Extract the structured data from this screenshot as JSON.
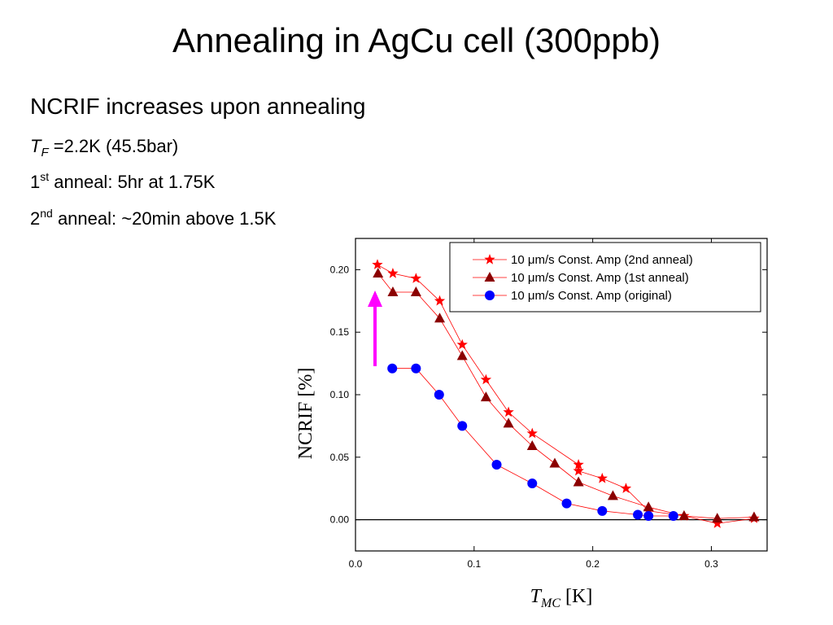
{
  "slide": {
    "title": "Annealing in AgCu cell (300ppb)",
    "heading": "NCRIF increases upon annealing",
    "lines": [
      {
        "main": "T",
        "sub": "F",
        "rest": " =2.2K (45.5bar)"
      },
      {
        "main": "1",
        "sup": "st",
        "rest": " anneal: 5hr at 1.75K"
      },
      {
        "main": "2",
        "sup": "nd",
        "rest": " anneal: ~20min above 1.5K"
      }
    ]
  },
  "chart_data": {
    "type": "line",
    "ylabel": "NCRIF [%]",
    "xlabel": {
      "symbol": "T",
      "subscript": "MC",
      "unit": "[K]"
    },
    "xlim": [
      0,
      0.347
    ],
    "ylim": [
      -0.025,
      0.225
    ],
    "xticks": [
      {
        "value": 0,
        "label": "0.0"
      },
      0.1,
      0.2,
      0.3
    ],
    "yticks": [
      {
        "value": 0,
        "label": "0.00"
      },
      {
        "value": 0.05,
        "label": "0.05"
      },
      {
        "value": 0.1,
        "label": "0.10"
      },
      {
        "value": 0.15,
        "label": "0.15"
      },
      {
        "value": 0.2,
        "label": "0.20"
      }
    ],
    "line_color": "#ff0000",
    "legend": "upper right",
    "series": [
      {
        "name": "10 μm/s Const. Amp (2nd anneal)",
        "color": "#ff0000",
        "marker": "star",
        "x": [
          0.0185,
          0.0315,
          0.051,
          0.071,
          0.09,
          0.11,
          0.129,
          0.149,
          0.188,
          0.188,
          0.208,
          0.228,
          0.247,
          0.277,
          0.305,
          0.336
        ],
        "values": [
          0.204,
          0.197,
          0.193,
          0.175,
          0.14,
          0.112,
          0.086,
          0.069,
          0.044,
          0.039,
          0.033,
          0.025,
          0.007,
          0.003,
          -0.003,
          0.001
        ]
      },
      {
        "name": "10 μm/s Const. Amp (1st anneal)",
        "color": "#8b0000",
        "marker": "triangle",
        "x": [
          0.019,
          0.0315,
          0.051,
          0.071,
          0.09,
          0.11,
          0.129,
          0.149,
          0.168,
          0.188,
          0.217,
          0.247,
          0.277,
          0.305,
          0.336
        ],
        "values": [
          0.197,
          0.182,
          0.182,
          0.161,
          0.131,
          0.098,
          0.077,
          0.059,
          0.045,
          0.03,
          0.019,
          0.01,
          0.003,
          0.001,
          0.002
        ]
      },
      {
        "name": "10 μm/s Const. Amp (original)",
        "color": "#0000ff",
        "marker": "circle",
        "x": [
          0.031,
          0.051,
          0.0705,
          0.09,
          0.119,
          0.149,
          0.178,
          0.208,
          0.238,
          0.247,
          0.268
        ],
        "values": [
          0.121,
          0.121,
          0.1,
          0.075,
          0.044,
          0.029,
          0.013,
          0.007,
          0.004,
          0.003,
          0.003
        ]
      }
    ]
  }
}
